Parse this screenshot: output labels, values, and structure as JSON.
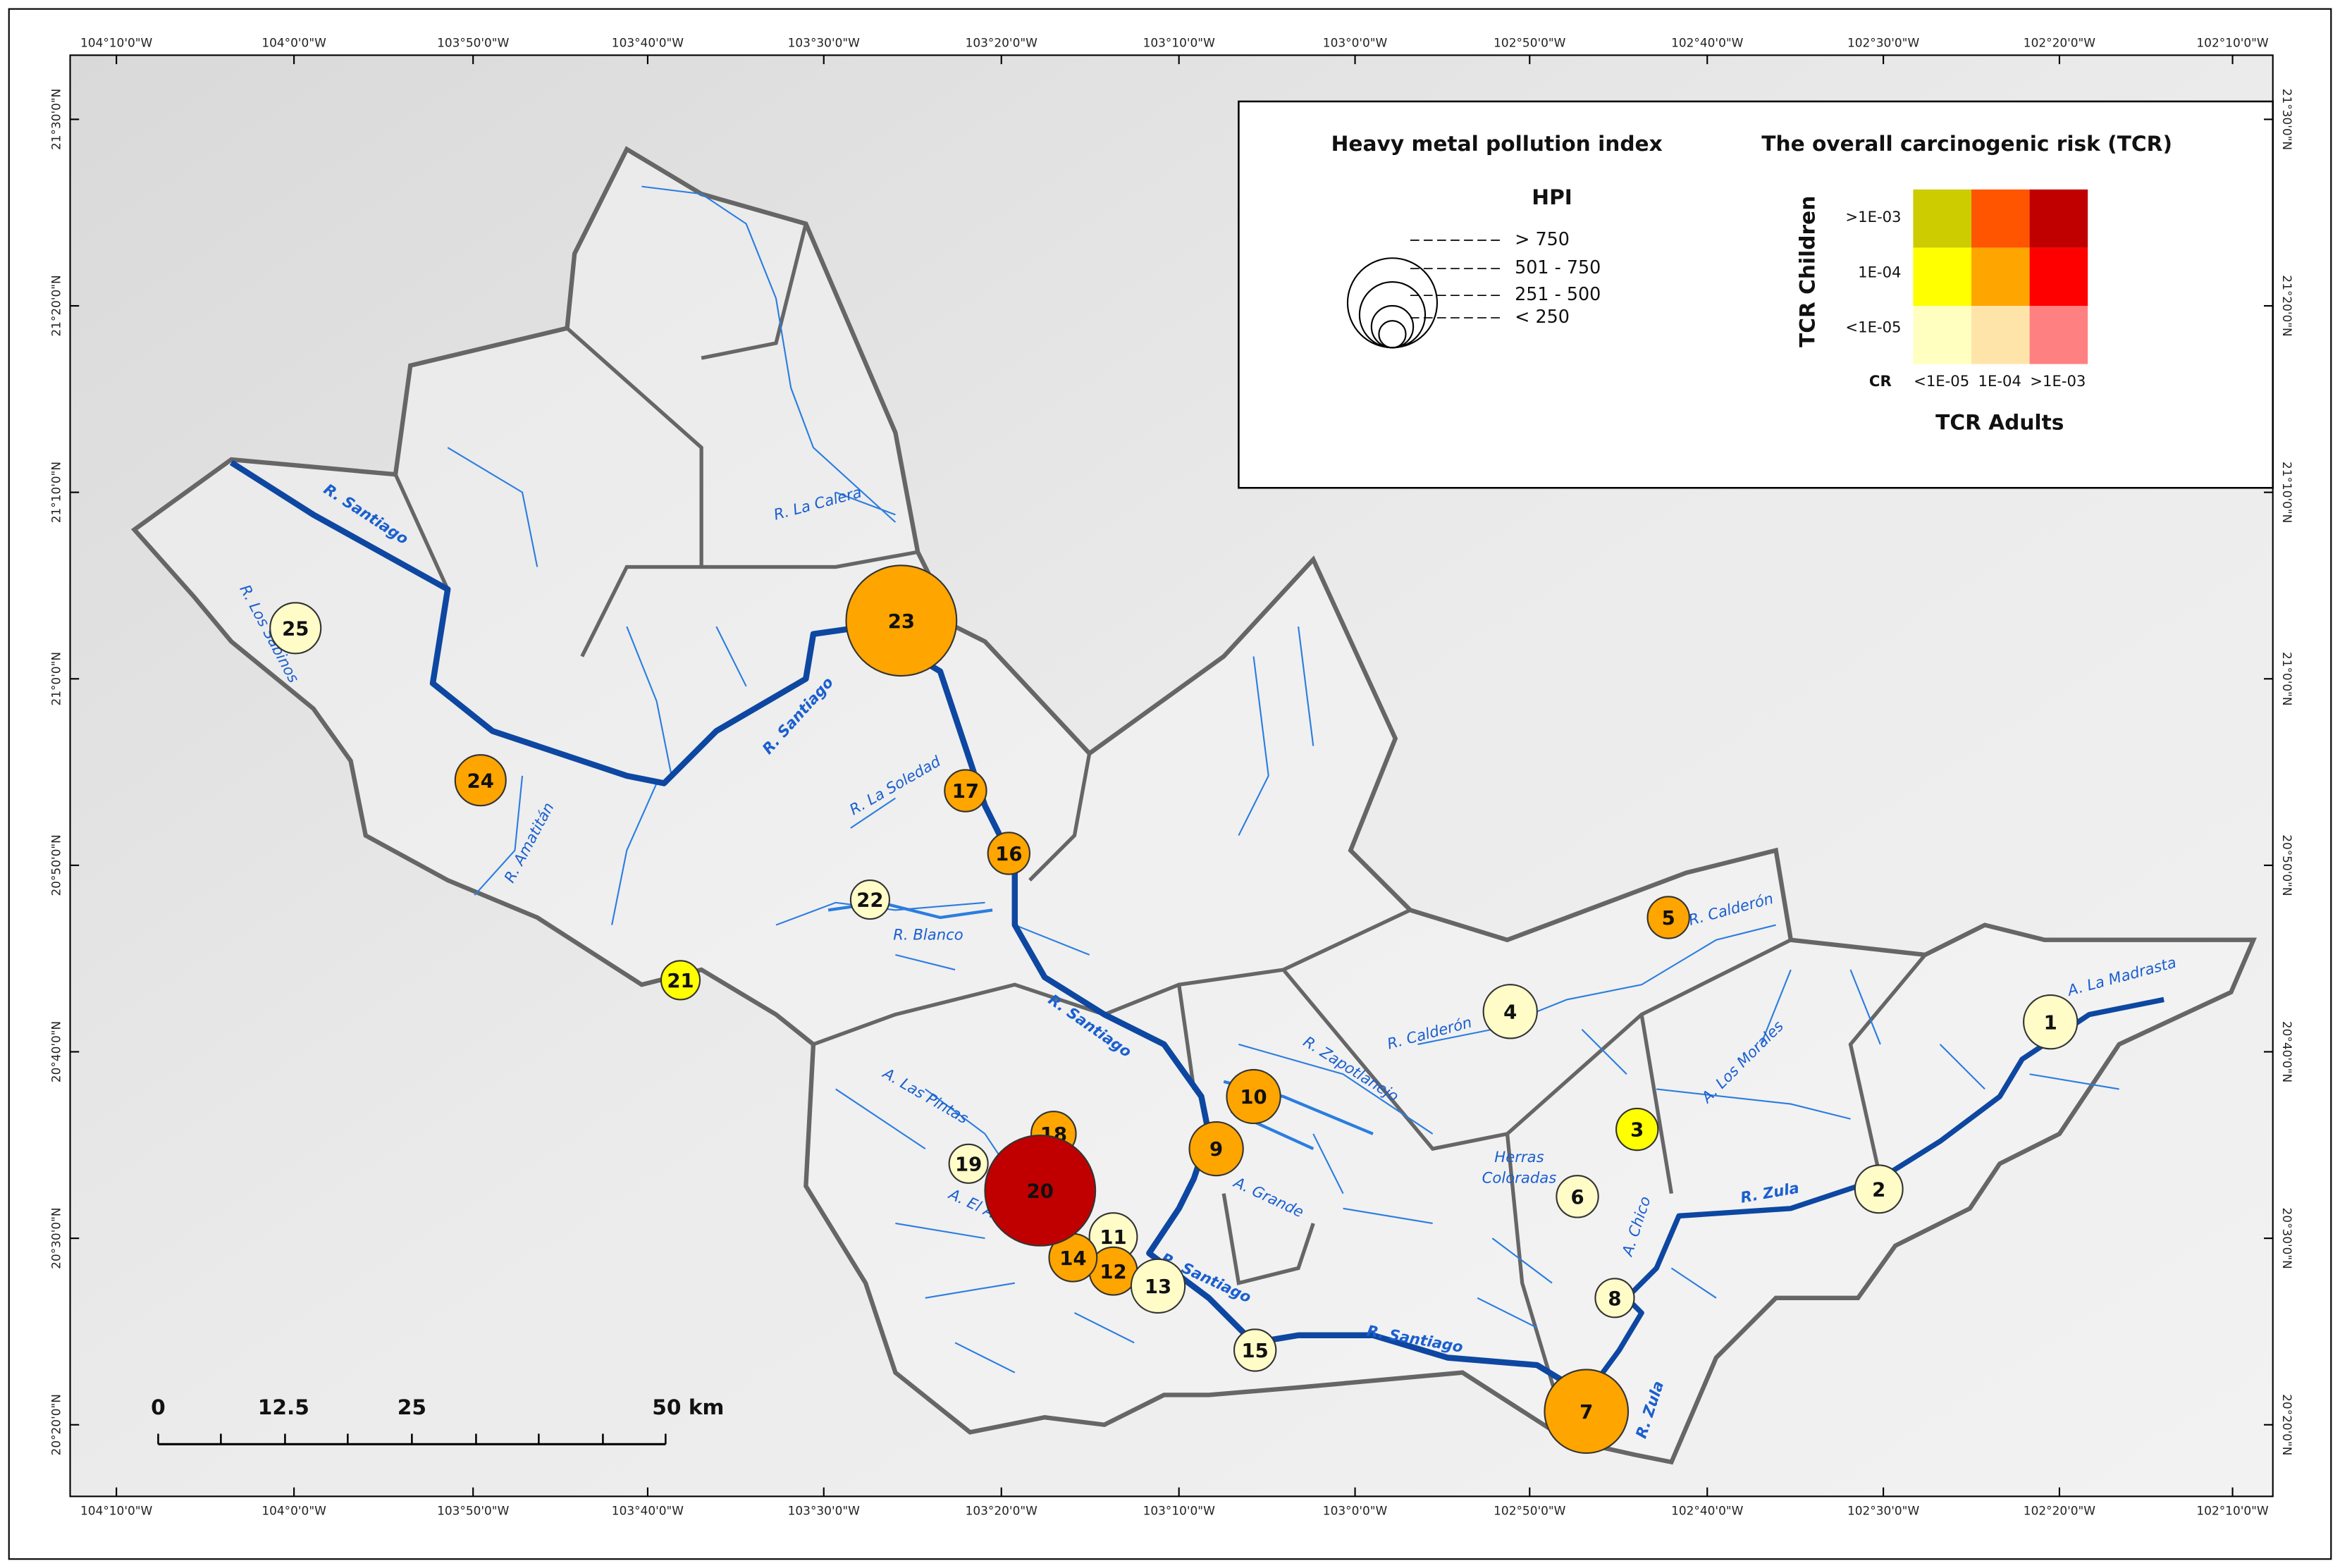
{
  "map": {
    "longitude_labels": [
      "104°10'0\"W",
      "104°0'0\"W",
      "103°50'0\"W",
      "103°40'0\"W",
      "103°30'0\"W",
      "103°20'0\"W",
      "103°10'0\"W",
      "103°0'0\"W",
      "102°50'0\"W",
      "102°40'0\"W",
      "102°30'0\"W",
      "102°20'0\"W",
      "102°10'0\"W"
    ],
    "latitude_labels": [
      "21°30'0\"N",
      "21°20'0\"N",
      "21°10'0\"N",
      "21°0'0\"N",
      "20°50'0\"N",
      "20°40'0\"N",
      "20°30'0\"N",
      "20°20'0\"N"
    ],
    "sites": [
      {
        "label": "1",
        "color": "#fffcc8"
      },
      {
        "label": "2",
        "color": "#fffcc8"
      },
      {
        "label": "3",
        "color": "#ffff00"
      },
      {
        "label": "4",
        "color": "#fffcc8"
      },
      {
        "label": "5",
        "color": "#ffa500"
      },
      {
        "label": "6",
        "color": "#fffcc8"
      },
      {
        "label": "7",
        "color": "#ffa500"
      },
      {
        "label": "8",
        "color": "#fffcc8"
      },
      {
        "label": "9",
        "color": "#ffa500"
      },
      {
        "label": "10",
        "color": "#ffa500"
      },
      {
        "label": "11",
        "color": "#fffcc8"
      },
      {
        "label": "12",
        "color": "#ffa500"
      },
      {
        "label": "13",
        "color": "#fffcc8"
      },
      {
        "label": "14",
        "color": "#ffa500"
      },
      {
        "label": "15",
        "color": "#fffcc8"
      },
      {
        "label": "16",
        "color": "#ffa500"
      },
      {
        "label": "17",
        "color": "#ffa500"
      },
      {
        "label": "18",
        "color": "#ffa500"
      },
      {
        "label": "19",
        "color": "#fffcc8"
      },
      {
        "label": "20",
        "color": "#c00000"
      },
      {
        "label": "21",
        "color": "#ffff00"
      },
      {
        "label": "22",
        "color": "#fffcc8"
      },
      {
        "label": "23",
        "color": "#ffa500"
      },
      {
        "label": "24",
        "color": "#ffa500"
      },
      {
        "label": "25",
        "color": "#fffcc8"
      }
    ],
    "river_labels": [
      "R. Santiago",
      "R. Santiago",
      "R. Santiago",
      "R. Santiago",
      "R. Santiago",
      "R. Los Sabinos",
      "R. La Calera",
      "R. La Soledad",
      "R. Amatitán",
      "R. Blanco",
      "A. Las Pintas",
      "A. El Ahogado",
      "A. Grande",
      "R. Zapotlanejo",
      "R. Calderón",
      "R. Calderón",
      "A. Los Morales",
      "A. Chico",
      "Herras",
      "Coloradas",
      "A. La Madrasta",
      "R. Zula",
      "R. Zula"
    ],
    "scale_bar_labels": [
      "0",
      "12.5",
      "25",
      "50 km"
    ]
  },
  "legend": {
    "hpi_title": "Heavy metal pollution index",
    "tcr_title": "The overall carcinogenic risk (TCR)",
    "hpi_heading": "HPI",
    "hpi_classes": [
      "> 750",
      "501 - 750",
      "251 - 500",
      "< 250"
    ],
    "tcr_children_label": "TCR Children",
    "children_levels": [
      ">1E-03",
      "1E-04",
      "<1E-05"
    ],
    "cr_label": "CR",
    "adult_levels": [
      "<1E-05",
      "1E-04",
      ">1E-03"
    ],
    "tcr_adults_label": "TCR Adults",
    "matrix_colors": [
      [
        "#cccc00",
        "#ff5500",
        "#c00000"
      ],
      [
        "#ffff00",
        "#ffa500",
        "#ff0000"
      ],
      [
        "#ffffc0",
        "#ffe4aa",
        "#ff8080"
      ]
    ]
  }
}
